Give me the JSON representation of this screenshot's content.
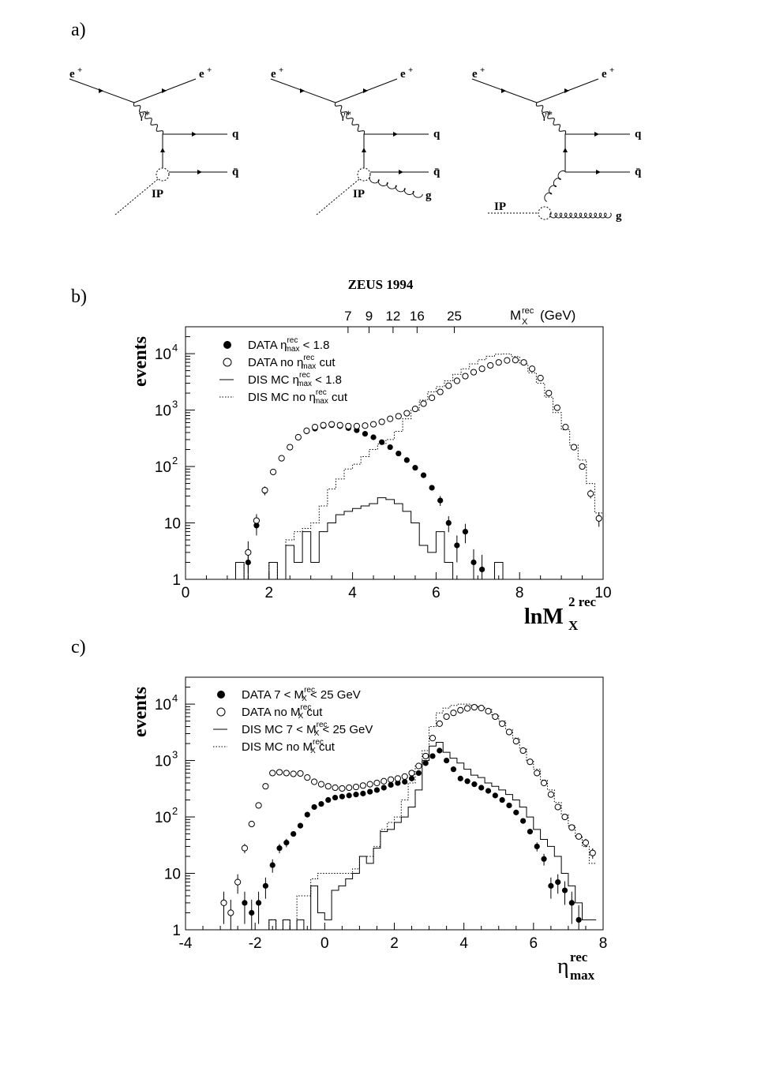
{
  "panel_labels": {
    "a": "a)",
    "b": "b)",
    "c": "c)"
  },
  "diagrams": {
    "eplus": "e+",
    "gamma": "γ*",
    "quark": "q",
    "antiquark": "q̄",
    "gluon": "g",
    "pomeron": "IP"
  },
  "colors": {
    "ink": "#000000",
    "background": "#ffffff"
  },
  "chart_data": [
    {
      "id": "b",
      "type": "scatter",
      "title": "ZEUS 1994",
      "xlabel": "lnM",
      "xlabel_sub": "X",
      "xlabel_sup": "2 rec",
      "ylabel": "events",
      "yscale": "log",
      "xlim": [
        0,
        10
      ],
      "ylim": [
        1,
        30000
      ],
      "xticks": [
        "0",
        "2",
        "4",
        "6",
        "8",
        "10"
      ],
      "yticks": [
        {
          "value": 1,
          "base": "1",
          "exp": ""
        },
        {
          "value": 10,
          "base": "10",
          "exp": ""
        },
        {
          "value": 100,
          "base": "10",
          "exp": "2"
        },
        {
          "value": 1000,
          "base": "10",
          "exp": "3"
        },
        {
          "value": 10000,
          "base": "10",
          "exp": "4"
        }
      ],
      "top_axis": {
        "label": "M",
        "label_sub": "X",
        "label_sup": "rec",
        "label_unit": "(GeV)",
        "ticks": [
          {
            "mass": 7,
            "text": "7"
          },
          {
            "mass": 9,
            "text": "9"
          },
          {
            "mass": 12,
            "text": "12"
          },
          {
            "mass": 16,
            "text": "16"
          },
          {
            "mass": 25,
            "text": "25"
          }
        ]
      },
      "legend": [
        {
          "marker": "filled",
          "text": "DATA η",
          "sub": "max",
          "sup": "rec",
          "rest": " < 1.8"
        },
        {
          "marker": "open",
          "text": "DATA no η",
          "sub": "max",
          "sup": "rec",
          "rest": " cut"
        },
        {
          "marker": "solid",
          "text": "DIS MC η",
          "sub": "max",
          "sup": "rec",
          "rest": " < 1.8"
        },
        {
          "marker": "dotted",
          "text": "DIS MC no η",
          "sub": "max",
          "sup": "rec",
          "rest": " cut"
        }
      ],
      "series": [
        {
          "name": "DATA ηmax < 1.8",
          "style": "filled",
          "x": [
            1.5,
            1.7,
            1.9,
            2.1,
            2.3,
            2.5,
            2.7,
            2.9,
            3.1,
            3.3,
            3.5,
            3.7,
            3.9,
            4.1,
            4.3,
            4.5,
            4.7,
            4.9,
            5.1,
            5.3,
            5.5,
            5.7,
            5.9,
            6.1,
            6.3,
            6.5,
            6.7,
            6.9,
            7.1
          ],
          "y": [
            2,
            9,
            37,
            80,
            140,
            220,
            330,
            420,
            470,
            520,
            540,
            520,
            480,
            440,
            380,
            330,
            270,
            220,
            170,
            130,
            95,
            70,
            42,
            25,
            10,
            4,
            7,
            2,
            1.5
          ]
        },
        {
          "name": "DATA no ηmax cut",
          "style": "open",
          "x": [
            1.5,
            1.7,
            1.9,
            2.1,
            2.3,
            2.5,
            2.7,
            2.9,
            3.1,
            3.3,
            3.5,
            3.7,
            3.9,
            4.1,
            4.3,
            4.5,
            4.7,
            4.9,
            5.1,
            5.3,
            5.5,
            5.7,
            5.9,
            6.1,
            6.3,
            6.5,
            6.7,
            6.9,
            7.1,
            7.3,
            7.5,
            7.7,
            7.9,
            8.1,
            8.3,
            8.5,
            8.7,
            8.9,
            9.1,
            9.3,
            9.5,
            9.7,
            9.9
          ],
          "y": [
            3,
            11,
            38,
            80,
            140,
            220,
            330,
            430,
            500,
            540,
            560,
            540,
            520,
            520,
            530,
            560,
            620,
            700,
            780,
            880,
            1050,
            1300,
            1650,
            2100,
            2700,
            3300,
            4000,
            4700,
            5400,
            6200,
            7000,
            7600,
            7700,
            7000,
            5400,
            3700,
            2000,
            1100,
            500,
            220,
            100,
            33,
            12
          ]
        },
        {
          "name": "DIS MC ηmax < 1.8",
          "style": "solid",
          "x": [
            1.1,
            1.3,
            1.5,
            1.7,
            1.9,
            2.1,
            2.3,
            2.5,
            2.7,
            2.9,
            3.1,
            3.3,
            3.5,
            3.7,
            3.9,
            4.1,
            4.3,
            4.5,
            4.7,
            4.9,
            5.1,
            5.3,
            5.5,
            5.7,
            5.9,
            6.1,
            6.3,
            6.5,
            6.7,
            6.9,
            7.1,
            7.3,
            7.5,
            7.7
          ],
          "y": [
            0,
            2,
            0,
            0,
            0,
            2,
            0,
            4,
            2,
            7,
            2,
            7,
            10,
            14,
            16,
            18,
            20,
            22,
            28,
            26,
            22,
            16,
            10,
            4,
            3,
            7,
            2,
            0,
            0,
            0,
            0,
            0,
            2,
            0
          ]
        },
        {
          "name": "DIS MC no ηmax cut",
          "style": "dotted",
          "x": [
            1.1,
            1.3,
            1.5,
            1.7,
            1.9,
            2.1,
            2.3,
            2.5,
            2.7,
            2.9,
            3.1,
            3.3,
            3.5,
            3.7,
            3.9,
            4.1,
            4.3,
            4.5,
            4.7,
            4.9,
            5.1,
            5.3,
            5.5,
            5.7,
            5.9,
            6.1,
            6.3,
            6.5,
            6.7,
            6.9,
            7.1,
            7.3,
            7.5,
            7.7,
            7.9,
            8.1,
            8.3,
            8.5,
            8.7,
            8.9,
            9.1,
            9.3,
            9.5,
            9.7,
            9.9
          ],
          "y": [
            0,
            2,
            0,
            0,
            0,
            2,
            0,
            5,
            7,
            8,
            10,
            20,
            40,
            60,
            90,
            110,
            150,
            200,
            250,
            300,
            420,
            700,
            1000,
            1500,
            2100,
            2600,
            3300,
            4300,
            5400,
            6600,
            7800,
            9000,
            9800,
            9900,
            8900,
            6600,
            4600,
            3000,
            1700,
            900,
            450,
            240,
            130,
            50,
            15
          ]
        }
      ]
    },
    {
      "id": "c",
      "type": "scatter",
      "title": "",
      "xlabel": "η",
      "xlabel_sub": "max",
      "xlabel_sup": "rec",
      "ylabel": "events",
      "yscale": "log",
      "xlim": [
        -4,
        8
      ],
      "ylim": [
        1,
        30000
      ],
      "xticks": [
        "-4",
        "-2",
        "0",
        "2",
        "4",
        "6",
        "8"
      ],
      "yticks": [
        {
          "value": 1,
          "base": "1",
          "exp": ""
        },
        {
          "value": 10,
          "base": "10",
          "exp": ""
        },
        {
          "value": 100,
          "base": "10",
          "exp": "2"
        },
        {
          "value": 1000,
          "base": "10",
          "exp": "3"
        },
        {
          "value": 10000,
          "base": "10",
          "exp": "4"
        }
      ],
      "legend": [
        {
          "marker": "filled",
          "text": "DATA  7 < M",
          "sub": "X",
          "sup": "rec",
          "rest": " < 25 GeV"
        },
        {
          "marker": "open",
          "text": "DATA no M",
          "sub": "X",
          "sup": "rec",
          "rest": " cut"
        },
        {
          "marker": "solid",
          "text": "DIS MC  7 < M",
          "sub": "X",
          "sup": "rec",
          "rest": " < 25 GeV"
        },
        {
          "marker": "dotted",
          "text": "DIS MC no M",
          "sub": "X",
          "sup": "rec",
          "rest": " cut"
        }
      ],
      "series": [
        {
          "name": "DATA 7 < MX < 25 GeV",
          "style": "filled",
          "x": [
            -2.3,
            -2.1,
            -1.9,
            -1.7,
            -1.5,
            -1.3,
            -1.1,
            -0.9,
            -0.7,
            -0.5,
            -0.3,
            -0.1,
            0.1,
            0.3,
            0.5,
            0.7,
            0.9,
            1.1,
            1.3,
            1.5,
            1.7,
            1.9,
            2.1,
            2.3,
            2.5,
            2.7,
            2.9,
            3.1,
            3.3,
            3.5,
            3.7,
            3.9,
            4.1,
            4.3,
            4.5,
            4.7,
            4.9,
            5.1,
            5.3,
            5.5,
            5.7,
            5.9,
            6.1,
            6.3,
            6.5,
            6.7,
            6.9,
            7.1,
            7.3
          ],
          "y": [
            3,
            2,
            3,
            6,
            14,
            28,
            35,
            50,
            70,
            110,
            150,
            170,
            200,
            220,
            230,
            240,
            250,
            260,
            280,
            300,
            330,
            370,
            400,
            420,
            480,
            600,
            900,
            1200,
            1500,
            1000,
            700,
            480,
            430,
            380,
            330,
            290,
            240,
            200,
            160,
            120,
            85,
            55,
            30,
            18,
            6,
            7,
            5,
            3,
            1.5
          ]
        },
        {
          "name": "DATA no MX cut",
          "style": "open",
          "x": [
            -2.9,
            -2.7,
            -2.5,
            -2.3,
            -2.1,
            -1.9,
            -1.7,
            -1.5,
            -1.3,
            -1.1,
            -0.9,
            -0.7,
            -0.5,
            -0.3,
            -0.1,
            0.1,
            0.3,
            0.5,
            0.7,
            0.9,
            1.1,
            1.3,
            1.5,
            1.7,
            1.9,
            2.1,
            2.3,
            2.5,
            2.7,
            2.9,
            3.1,
            3.3,
            3.5,
            3.7,
            3.9,
            4.1,
            4.3,
            4.5,
            4.7,
            4.9,
            5.1,
            5.3,
            5.5,
            5.7,
            5.9,
            6.1,
            6.3,
            6.5,
            6.7,
            6.9,
            7.1,
            7.3,
            7.5,
            7.7
          ],
          "y": [
            3,
            2,
            7,
            28,
            75,
            160,
            350,
            600,
            620,
            600,
            580,
            590,
            500,
            420,
            380,
            350,
            330,
            320,
            330,
            340,
            360,
            380,
            400,
            430,
            460,
            480,
            520,
            600,
            800,
            1200,
            2500,
            4500,
            6000,
            7000,
            7800,
            8400,
            8800,
            8500,
            7500,
            6000,
            4500,
            3200,
            2200,
            1500,
            950,
            600,
            400,
            250,
            150,
            100,
            65,
            45,
            35,
            23
          ]
        },
        {
          "name": "DIS MC 7 < MX < 25 GeV",
          "style": "solid",
          "x": [
            -2.9,
            -2.7,
            -2.5,
            -2.3,
            -2.1,
            -1.9,
            -1.7,
            -1.5,
            -1.3,
            -1.1,
            -0.9,
            -0.7,
            -0.5,
            -0.3,
            -0.1,
            0.1,
            0.3,
            0.5,
            0.7,
            0.9,
            1.1,
            1.3,
            1.5,
            1.7,
            1.9,
            2.1,
            2.3,
            2.5,
            2.7,
            2.9,
            3.1,
            3.3,
            3.5,
            3.7,
            3.9,
            4.1,
            4.3,
            4.5,
            4.7,
            4.9,
            5.1,
            5.3,
            5.5,
            5.7,
            5.9,
            6.1,
            6.3,
            6.5,
            6.7,
            6.9,
            7.1,
            7.3,
            7.5,
            7.7
          ],
          "y": [
            0,
            0,
            0,
            0,
            0,
            0,
            0,
            1.5,
            0,
            1.5,
            0,
            1.5,
            0,
            6,
            2,
            1.5,
            5,
            6,
            8,
            10,
            20,
            15,
            28,
            55,
            60,
            80,
            100,
            150,
            300,
            1000,
            1800,
            2100,
            1400,
            1100,
            900,
            700,
            550,
            500,
            400,
            350,
            300,
            250,
            200,
            150,
            100,
            60,
            40,
            30,
            20,
            10,
            6,
            3,
            1.5,
            1.5
          ]
        },
        {
          "name": "DIS MC no MX cut",
          "style": "dotted",
          "x": [
            -2.9,
            -2.7,
            -2.5,
            -2.3,
            -2.1,
            -1.9,
            -1.7,
            -1.5,
            -1.3,
            -1.1,
            -0.9,
            -0.7,
            -0.5,
            -0.3,
            -0.1,
            0.1,
            0.3,
            0.5,
            0.7,
            0.9,
            1.1,
            1.3,
            1.5,
            1.7,
            1.9,
            2.1,
            2.3,
            2.5,
            2.7,
            2.9,
            3.1,
            3.3,
            3.5,
            3.7,
            3.9,
            4.1,
            4.3,
            4.5,
            4.7,
            4.9,
            5.1,
            5.3,
            5.5,
            5.7,
            5.9,
            6.1,
            6.3,
            6.5,
            6.7,
            6.9,
            7.1,
            7.3,
            7.5,
            7.7
          ],
          "y": [
            0,
            0,
            0,
            0,
            0,
            0,
            0,
            1.5,
            0,
            1.5,
            0,
            4,
            4,
            8,
            10,
            10,
            10,
            10,
            10,
            12,
            20,
            20,
            30,
            60,
            80,
            100,
            200,
            400,
            800,
            1500,
            4000,
            7000,
            8500,
            9500,
            10000,
            10000,
            9500,
            9000,
            8000,
            6500,
            5000,
            3500,
            2500,
            1600,
            1000,
            700,
            450,
            300,
            180,
            110,
            70,
            45,
            30,
            15
          ]
        }
      ]
    }
  ]
}
